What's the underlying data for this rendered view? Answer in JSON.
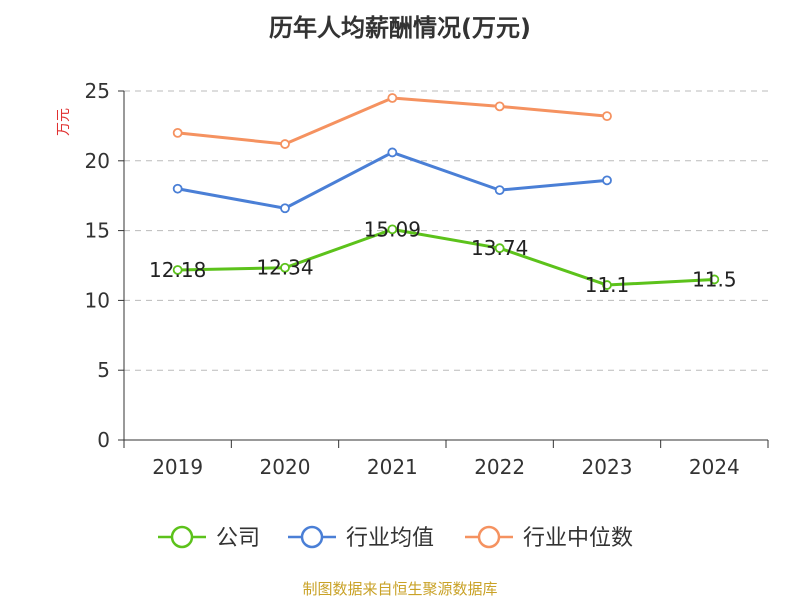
{
  "chart_data": {
    "type": "line",
    "title": "历年人均薪酬情况(万元)",
    "ylabel": "万元",
    "xlabel": "",
    "categories": [
      "2019",
      "2020",
      "2021",
      "2022",
      "2023",
      "2024"
    ],
    "ylim": [
      0,
      25
    ],
    "yticks": [
      0,
      5,
      10,
      15,
      20,
      25
    ],
    "ytick_labels": [
      "0",
      "5",
      "10",
      "15",
      "20",
      "25"
    ],
    "grid": true,
    "legend_position": "bottom",
    "series": [
      {
        "name": "公司",
        "color": "#5cc21b",
        "values": [
          12.18,
          12.34,
          15.09,
          13.74,
          11.1,
          11.5
        ],
        "data_labels": [
          "12.18",
          "12.34",
          "15.09",
          "13.74",
          "11.1",
          "11.5"
        ]
      },
      {
        "name": "行业均值",
        "color": "#4a7fd6",
        "values": [
          18.0,
          16.6,
          20.6,
          17.9,
          18.6,
          null
        ]
      },
      {
        "name": "行业中位数",
        "color": "#f59260",
        "values": [
          22.0,
          21.2,
          24.5,
          23.9,
          23.2,
          null
        ]
      }
    ]
  },
  "source_note": "制图数据来自恒生聚源数据库",
  "colors": {
    "ylabel": "#e03030",
    "source_note": "#c9a227",
    "grid": "#bbbbbb",
    "axis": "#333333"
  }
}
